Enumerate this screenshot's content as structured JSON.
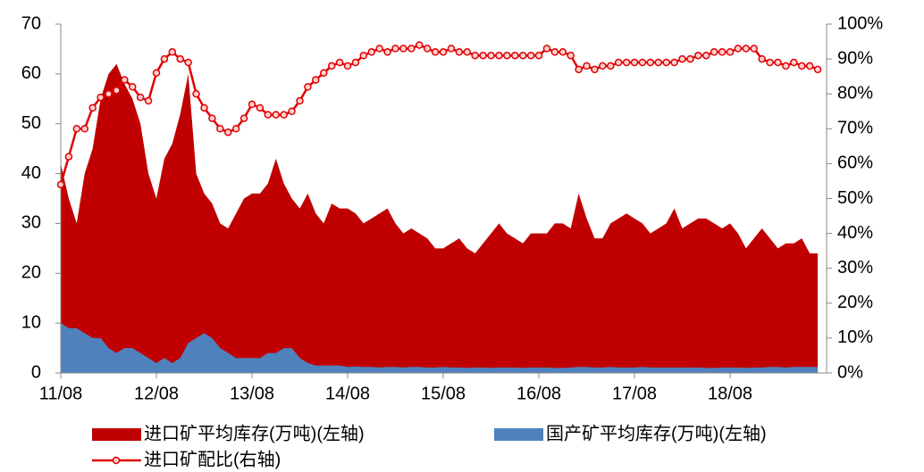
{
  "chart_data": {
    "type": "area-line",
    "categories": [
      "11/08",
      null,
      null,
      null,
      null,
      null,
      null,
      null,
      null,
      null,
      null,
      null,
      "12/08",
      null,
      null,
      null,
      null,
      null,
      null,
      null,
      null,
      null,
      null,
      null,
      "13/08",
      null,
      null,
      null,
      null,
      null,
      null,
      null,
      null,
      null,
      null,
      null,
      "14/08",
      null,
      null,
      null,
      null,
      null,
      null,
      null,
      null,
      null,
      null,
      null,
      "15/08",
      null,
      null,
      null,
      null,
      null,
      null,
      null,
      null,
      null,
      null,
      null,
      "16/08",
      null,
      null,
      null,
      null,
      null,
      null,
      null,
      null,
      null,
      null,
      null,
      "17/08",
      null,
      null,
      null,
      null,
      null,
      null,
      null,
      null,
      null,
      null,
      null,
      "18/08",
      null,
      null,
      null,
      null,
      null,
      null,
      null,
      null,
      null,
      null,
      null
    ],
    "series": [
      {
        "name": "进口矿平均库存(万吨)(左轴)",
        "color": "#c00000",
        "kind": "area",
        "values": [
          42,
          35,
          30,
          40,
          45,
          55,
          60,
          62,
          58,
          55,
          50,
          40,
          35,
          43,
          46,
          52,
          60,
          40,
          36,
          34,
          30,
          29,
          32,
          35,
          36,
          36,
          38,
          43,
          38,
          35,
          33,
          36,
          32,
          30,
          34,
          33,
          33,
          32,
          30,
          31,
          32,
          33,
          30,
          28,
          29,
          28,
          27,
          25,
          25,
          26,
          27,
          25,
          24,
          26,
          28,
          30,
          28,
          27,
          26,
          28,
          28,
          28,
          30,
          30,
          29,
          36,
          31,
          27,
          27,
          30,
          31,
          32,
          31,
          30,
          28,
          29,
          30,
          33,
          29,
          30,
          31,
          31,
          30,
          29,
          30,
          28,
          25,
          27,
          29,
          27,
          25,
          26,
          26,
          27,
          24,
          24
        ]
      },
      {
        "name": "国产矿平均库存(万吨)(左轴)",
        "color": "#4f81bd",
        "kind": "area",
        "values": [
          10,
          9,
          9,
          8,
          7,
          7,
          5,
          4,
          5,
          5,
          4,
          3,
          2,
          3,
          2,
          3,
          6,
          7,
          8,
          7,
          5,
          4,
          3,
          3,
          3,
          3,
          4,
          4,
          5,
          5,
          3,
          2,
          1.5,
          1.5,
          1.5,
          1.5,
          1.2,
          1.3,
          1.2,
          1.2,
          1.1,
          1.2,
          1.2,
          1.1,
          1.2,
          1.2,
          1.1,
          1.1,
          1.2,
          1.1,
          1.1,
          1.0,
          1.1,
          1.1,
          1.0,
          1.1,
          1.1,
          1.1,
          1.0,
          1.1,
          1.1,
          1.1,
          1.0,
          1.0,
          1.1,
          1.2,
          1.2,
          1.1,
          1.1,
          1.2,
          1.1,
          1.1,
          1.1,
          1.2,
          1.1,
          1.1,
          1.1,
          1.1,
          1.1,
          1.1,
          1.1,
          1.0,
          1.0,
          1.1,
          1.1,
          1.1,
          1.0,
          1.1,
          1.1,
          1.2,
          1.2,
          1.1,
          1.2,
          1.2,
          1.2,
          1.2
        ]
      },
      {
        "name": "进口矿配比(右轴)",
        "color": "#e00000",
        "kind": "line",
        "axis": "y2",
        "values": [
          54,
          62,
          70,
          70,
          76,
          79,
          80,
          81,
          84,
          82,
          79,
          78,
          86,
          90,
          92,
          90,
          89,
          80,
          76,
          73,
          70,
          69,
          70,
          73,
          77,
          76,
          74,
          74,
          74,
          75,
          78,
          82,
          84,
          86,
          88,
          89,
          88,
          89,
          91,
          92,
          93,
          92,
          93,
          93,
          93,
          94,
          93,
          92,
          92,
          93,
          92,
          92,
          91,
          91,
          91,
          91,
          91,
          91,
          91,
          91,
          91,
          93,
          92,
          92,
          91,
          87,
          88,
          87,
          88,
          88,
          89,
          89,
          89,
          89,
          89,
          89,
          89,
          89,
          90,
          90,
          91,
          91,
          92,
          92,
          92,
          93,
          93,
          93,
          90,
          89,
          89,
          88,
          89,
          88,
          88,
          87
        ]
      }
    ],
    "ylim": [
      0,
      70
    ],
    "yticks": [
      0,
      10,
      20,
      30,
      40,
      50,
      60,
      70
    ],
    "y2lim": [
      0,
      100
    ],
    "y2ticks": [
      {
        "value": 0,
        "label": "0%"
      },
      {
        "value": 10,
        "label": "10%"
      },
      {
        "value": 20,
        "label": "20%"
      },
      {
        "value": 30,
        "label": "30%"
      },
      {
        "value": 40,
        "label": "40%"
      },
      {
        "value": 50,
        "label": "50%"
      },
      {
        "value": 60,
        "label": "60%"
      },
      {
        "value": 70,
        "label": "70%"
      },
      {
        "value": 80,
        "label": "80%"
      },
      {
        "value": 90,
        "label": "90%"
      },
      {
        "value": 100,
        "label": "100%"
      }
    ],
    "legend": "bottom",
    "grid": false
  }
}
